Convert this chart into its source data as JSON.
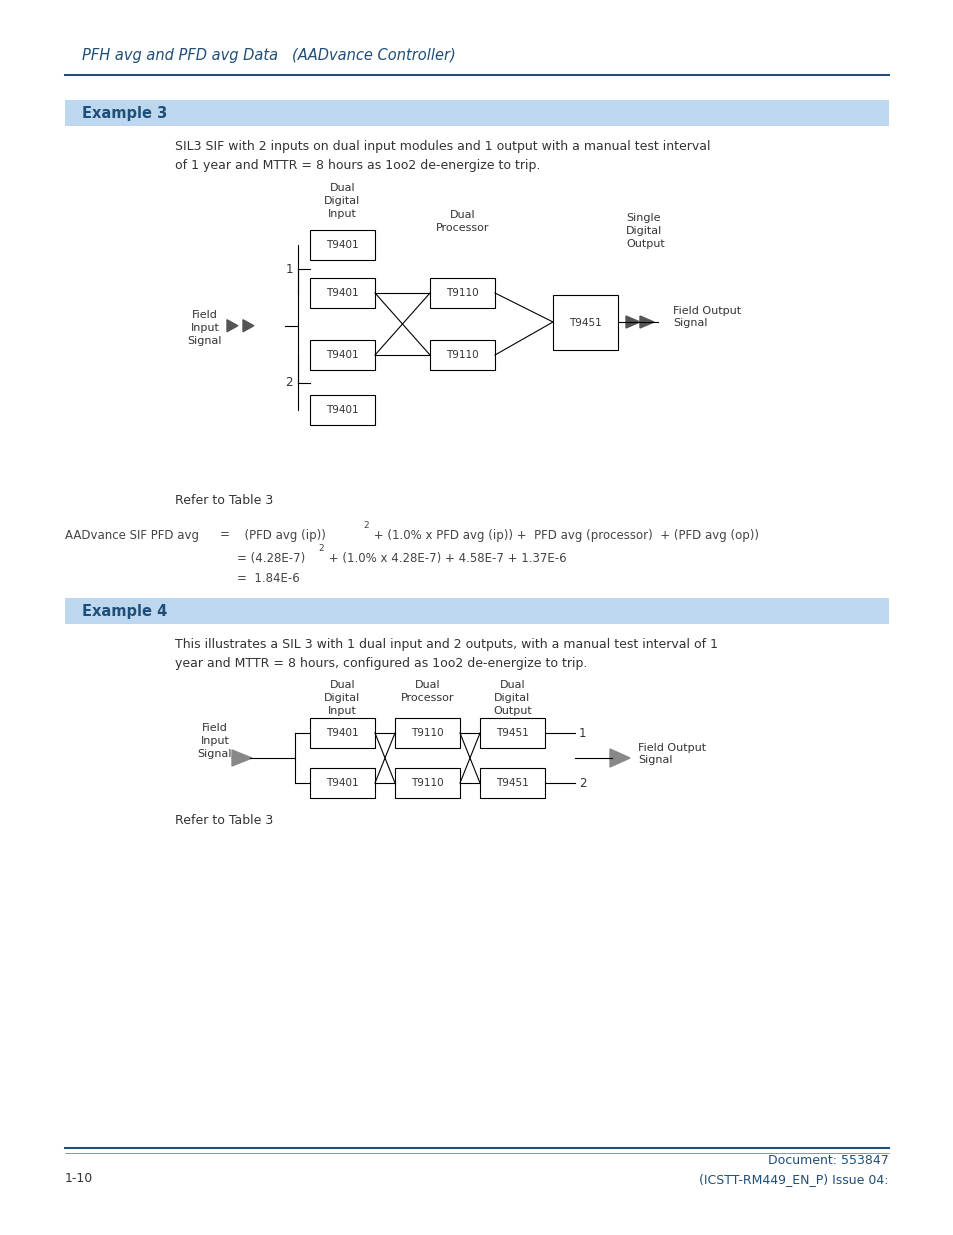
{
  "page_bg": "#ffffff",
  "header_text": "PFH avg and PFD avg Data   (AADvance Controller)",
  "header_color": "#1F4E79",
  "header_line_color": "#1F4E79",
  "example3_bg": "#BDD7EE",
  "example3_text": "Example 3",
  "example3_text_color": "#1F4E79",
  "example3_desc": "SIL3 SIF with 2 inputs on dual input modules and 1 output with a manual test interval\nof 1 year and MTTR = 8 hours as 1oo2 de-energize to trip.",
  "example4_bg": "#BDD7EE",
  "example4_text": "Example 4",
  "example4_text_color": "#1F4E79",
  "example4_desc": "This illustrates a SIL 3 with 1 dual input and 2 outputs, with a manual test interval of 1\nyear and MTTR = 8 hours, configured as 1oo2 de-energize to trip.",
  "refer_table3": "Refer to Table 3",
  "footer_left": "1-10",
  "footer_right": "Document: 553847\n(ICSTT-RM449_EN_P) Issue 04:",
  "footer_line_color": "#1F4E79",
  "box_color": "#000000",
  "text_color": "#333333",
  "gray_text": "#444444"
}
